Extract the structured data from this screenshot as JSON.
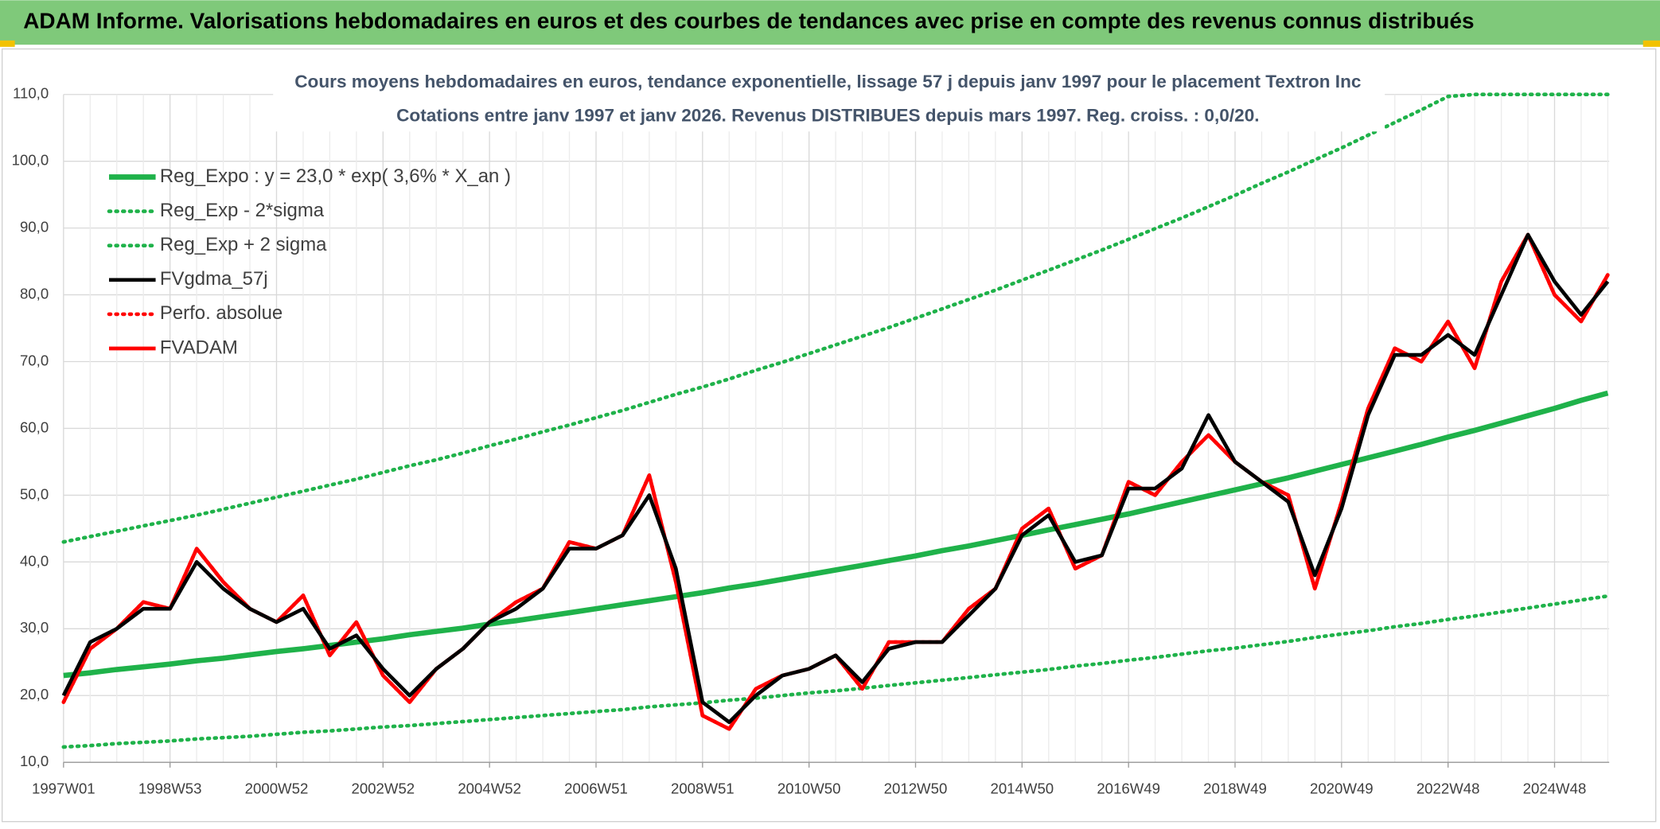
{
  "header": {
    "title": "ADAM Informe. Valorisations hebdomadaires en euros et des courbes de tendances avec prise en compte des revenus connus distribués"
  },
  "chart_data": {
    "type": "line",
    "title": "Cours moyens hebdomadaires en euros, tendance exponentielle, lissage 57 j depuis janv 1997 pour le placement Textron Inc",
    "subtitle": "Cotations entre janv 1997 et janv 2026. Revenus DISTRIBUES depuis mars 1997. Reg. croiss. : 0,0/20.",
    "categories": [
      "1997W01",
      null,
      null,
      null,
      "1998W53",
      null,
      null,
      null,
      "2000W52",
      null,
      null,
      null,
      "2002W52",
      null,
      null,
      null,
      "2004W52",
      null,
      null,
      null,
      "2006W51",
      null,
      null,
      null,
      "2008W51",
      null,
      null,
      null,
      "2010W50",
      null,
      null,
      null,
      "2012W50",
      null,
      null,
      null,
      "2014W50",
      null,
      null,
      null,
      "2016W49",
      null,
      null,
      null,
      "2018W49",
      null,
      null,
      null,
      "2020W49",
      null,
      null,
      null,
      "2022W48",
      null,
      null,
      null,
      "2024W48",
      null,
      null
    ],
    "ylim": [
      10,
      110
    ],
    "yticks": [
      {
        "value": 10,
        "label": "10,0"
      },
      {
        "value": 20,
        "label": "20,0"
      },
      {
        "value": 30,
        "label": "30,0"
      },
      {
        "value": 40,
        "label": "40,0"
      },
      {
        "value": 50,
        "label": "50,0"
      },
      {
        "value": 60,
        "label": "60,0"
      },
      {
        "value": 70,
        "label": "70,0"
      },
      {
        "value": 80,
        "label": "80,0"
      },
      {
        "value": 90,
        "label": "90,0"
      },
      {
        "value": 100,
        "label": "100,0"
      },
      {
        "value": 110,
        "label": "110,0"
      }
    ],
    "grid": true,
    "legend": "top-left",
    "series": [
      {
        "name": "Reg_Expo : y = 23,0 * exp( 3,6% *  X_an )",
        "color": "#1fb24a",
        "style": "solid",
        "values": [
          23.0,
          23.4,
          23.9,
          24.3,
          24.7,
          25.2,
          25.6,
          26.1,
          26.6,
          27.0,
          27.5,
          28.0,
          28.5,
          29.1,
          29.6,
          30.1,
          30.7,
          31.2,
          31.8,
          32.4,
          33.0,
          33.6,
          34.2,
          34.8,
          35.4,
          36.1,
          36.7,
          37.4,
          38.1,
          38.8,
          39.5,
          40.2,
          40.9,
          41.7,
          42.4,
          43.2,
          44.0,
          44.8,
          45.6,
          46.4,
          47.2,
          48.1,
          49.0,
          49.9,
          50.8,
          51.7,
          52.6,
          53.6,
          54.6,
          55.6,
          56.6,
          57.6,
          58.7,
          59.7,
          60.8,
          61.9,
          63.0,
          64.2,
          65.3
        ]
      },
      {
        "name": "Reg_Exp - 2*sigma",
        "color": "#1fb24a",
        "style": "dotted",
        "values": [
          12.3,
          12.5,
          12.8,
          13.0,
          13.2,
          13.5,
          13.7,
          13.9,
          14.2,
          14.5,
          14.7,
          15.0,
          15.3,
          15.5,
          15.8,
          16.1,
          16.4,
          16.7,
          17.0,
          17.3,
          17.6,
          17.9,
          18.3,
          18.6,
          18.9,
          19.3,
          19.6,
          20.0,
          20.4,
          20.7,
          21.1,
          21.5,
          21.9,
          22.3,
          22.7,
          23.1,
          23.5,
          23.9,
          24.4,
          24.8,
          25.3,
          25.7,
          26.2,
          26.7,
          27.1,
          27.6,
          28.1,
          28.7,
          29.2,
          29.7,
          30.3,
          30.8,
          31.4,
          31.9,
          32.5,
          33.1,
          33.7,
          34.3,
          34.9
        ]
      },
      {
        "name": "Reg_Exp + 2 sigma",
        "color": "#1fb24a",
        "style": "dotted",
        "values": [
          43.0,
          43.8,
          44.6,
          45.4,
          46.2,
          47.0,
          47.9,
          48.8,
          49.7,
          50.6,
          51.5,
          52.4,
          53.4,
          54.4,
          55.3,
          56.3,
          57.4,
          58.4,
          59.5,
          60.5,
          61.6,
          62.7,
          63.9,
          65.1,
          66.2,
          67.4,
          68.7,
          69.9,
          71.2,
          72.5,
          73.8,
          75.1,
          76.5,
          77.9,
          79.3,
          80.7,
          82.2,
          83.7,
          85.2,
          86.7,
          88.3,
          89.9,
          91.5,
          93.2,
          94.9,
          96.7,
          98.4,
          100.2,
          102.0,
          103.9,
          105.8,
          107.7,
          109.7,
          110,
          110,
          110,
          110,
          110,
          110
        ]
      },
      {
        "name": "FVgdma_57j",
        "color": "#000000",
        "style": "solid",
        "values": [
          20,
          28,
          30,
          33,
          33,
          40,
          36,
          33,
          31,
          33,
          27,
          29,
          24,
          20,
          24,
          27,
          31,
          33,
          36,
          42,
          42,
          44,
          50,
          39,
          19,
          16,
          20,
          23,
          24,
          26,
          22,
          27,
          28,
          28,
          32,
          36,
          44,
          47,
          40,
          41,
          51,
          51,
          54,
          62,
          55,
          52,
          49,
          38,
          48,
          62,
          71,
          71,
          74,
          71,
          80,
          89,
          82,
          77,
          82
        ]
      },
      {
        "name": "Perfo. absolue",
        "color": "#ff0000",
        "style": "dotted",
        "values": [
          19,
          27,
          30,
          34,
          33,
          42,
          37,
          33,
          31,
          35,
          26,
          31,
          23,
          19,
          24,
          27,
          31,
          34,
          36,
          43,
          42,
          44,
          53,
          37,
          17,
          15,
          21,
          23,
          24,
          26,
          21,
          28,
          28,
          28,
          33,
          36,
          45,
          48,
          39,
          41,
          52,
          50,
          55,
          59,
          55,
          52,
          50,
          36,
          49,
          63,
          72,
          70,
          76,
          69,
          82,
          89,
          80,
          76,
          83
        ]
      },
      {
        "name": "FVADAM",
        "color": "#ff0000",
        "style": "solid",
        "values": [
          19,
          27,
          30,
          34,
          33,
          42,
          37,
          33,
          31,
          35,
          26,
          31,
          23,
          19,
          24,
          27,
          31,
          34,
          36,
          43,
          42,
          44,
          53,
          37,
          17,
          15,
          21,
          23,
          24,
          26,
          21,
          28,
          28,
          28,
          33,
          36,
          45,
          48,
          39,
          41,
          52,
          50,
          55,
          59,
          55,
          52,
          50,
          36,
          49,
          63,
          72,
          70,
          76,
          69,
          82,
          89,
          80,
          76,
          83
        ]
      }
    ]
  }
}
